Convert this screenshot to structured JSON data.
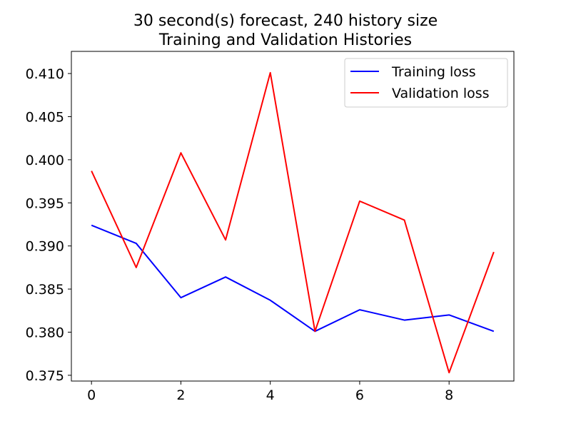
{
  "chart_data": {
    "type": "line",
    "title": [
      "30 second(s) forecast, 240 history size",
      "Training and Validation Histories"
    ],
    "xlabel": "",
    "ylabel": "",
    "x": [
      0,
      1,
      2,
      3,
      4,
      5,
      6,
      7,
      8,
      9
    ],
    "xlim": [
      -0.45,
      9.45
    ],
    "ylim": [
      0.37433,
      0.41257
    ],
    "xticks": [
      0,
      2,
      4,
      6,
      8
    ],
    "xtick_labels": [
      "0",
      "2",
      "4",
      "6",
      "8"
    ],
    "yticks": [
      0.375,
      0.38,
      0.385,
      0.39,
      0.395,
      0.4,
      0.405,
      0.41
    ],
    "ytick_labels": [
      "0.375",
      "0.380",
      "0.385",
      "0.390",
      "0.395",
      "0.400",
      "0.405",
      "0.410"
    ],
    "grid": false,
    "legend_position": "upper right",
    "series": [
      {
        "name": "Training loss",
        "color": "#0000ff",
        "values": [
          0.3924,
          0.3903,
          0.384,
          0.3864,
          0.3837,
          0.3801,
          0.3826,
          0.3814,
          0.382,
          0.3801
        ]
      },
      {
        "name": "Validation loss",
        "color": "#ff0000",
        "values": [
          0.3987,
          0.3875,
          0.4008,
          0.3907,
          0.4101,
          0.3801,
          0.3952,
          0.393,
          0.3753,
          0.3893
        ]
      }
    ]
  }
}
